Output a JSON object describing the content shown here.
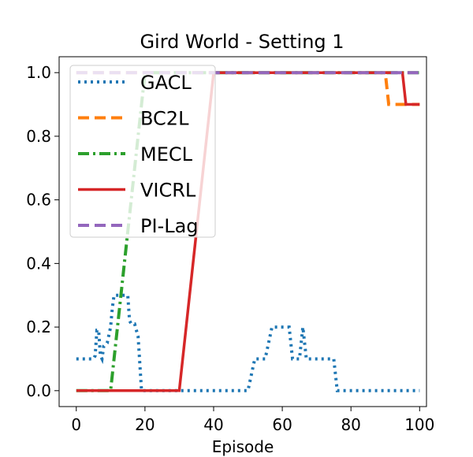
{
  "chart_data": {
    "type": "line",
    "title": "Gird World - Setting 1",
    "xlabel": "Episode",
    "ylabel": "",
    "xlim": [
      -5,
      102
    ],
    "ylim": [
      -0.05,
      1.05
    ],
    "xticks": [
      0,
      20,
      40,
      60,
      80,
      100
    ],
    "yticks": [
      0.0,
      0.2,
      0.4,
      0.6,
      0.8,
      1.0
    ],
    "xtick_labels": [
      "0",
      "20",
      "40",
      "60",
      "80",
      "100"
    ],
    "ytick_labels": [
      "0.0",
      "0.2",
      "0.4",
      "0.6",
      "0.8",
      "1.0"
    ],
    "grid": false,
    "legend_position": "top-left",
    "series": [
      {
        "name": "GACL",
        "color": "#1f77b4",
        "style": "dotted",
        "x": [
          0,
          5,
          5.5,
          6,
          6.5,
          7,
          7.5,
          8,
          9,
          10,
          10.5,
          11,
          12,
          13,
          14,
          15,
          15.5,
          16,
          17,
          18,
          19,
          20,
          25,
          30,
          35,
          40,
          45,
          50,
          52,
          53,
          55,
          56,
          57,
          58,
          60,
          62,
          63,
          64,
          65,
          66,
          67,
          68,
          70,
          72,
          75,
          76,
          80,
          85,
          90,
          95,
          100
        ],
        "y": [
          0.1,
          0.1,
          0.11,
          0.19,
          0.19,
          0.11,
          0.1,
          0.14,
          0.15,
          0.2,
          0.26,
          0.3,
          0.3,
          0.3,
          0.3,
          0.3,
          0.22,
          0.21,
          0.21,
          0.17,
          0.0,
          0.0,
          0.0,
          0.0,
          0.0,
          0.0,
          0.0,
          0.0,
          0.1,
          0.1,
          0.1,
          0.15,
          0.2,
          0.2,
          0.2,
          0.2,
          0.1,
          0.1,
          0.1,
          0.2,
          0.1,
          0.1,
          0.1,
          0.1,
          0.1,
          0.0,
          0.0,
          0.0,
          0.0,
          0.0,
          0.0
        ]
      },
      {
        "name": "BC2L",
        "color": "#ff7f0e",
        "style": "dashed",
        "x": [
          0,
          20,
          40,
          60,
          80,
          90,
          91,
          95,
          100
        ],
        "y": [
          1.0,
          1.0,
          1.0,
          1.0,
          1.0,
          1.0,
          0.9,
          0.9,
          0.9
        ]
      },
      {
        "name": "MECL",
        "color": "#2ca02c",
        "style": "dashdot",
        "x": [
          0,
          10,
          20,
          40,
          60,
          80,
          100
        ],
        "y": [
          0.0,
          0.0,
          1.0,
          1.0,
          1.0,
          1.0,
          1.0
        ]
      },
      {
        "name": "VICRL",
        "color": "#d62728",
        "style": "solid",
        "x": [
          0,
          30,
          40,
          60,
          80,
          95,
          96,
          100
        ],
        "y": [
          0.0,
          0.0,
          1.0,
          1.0,
          1.0,
          1.0,
          0.9,
          0.9
        ]
      },
      {
        "name": "PI-Lag",
        "color": "#9467bd",
        "style": "dashed",
        "x": [
          0,
          20,
          40,
          60,
          80,
          100
        ],
        "y": [
          1.0,
          1.0,
          1.0,
          1.0,
          1.0,
          1.0
        ]
      }
    ]
  }
}
